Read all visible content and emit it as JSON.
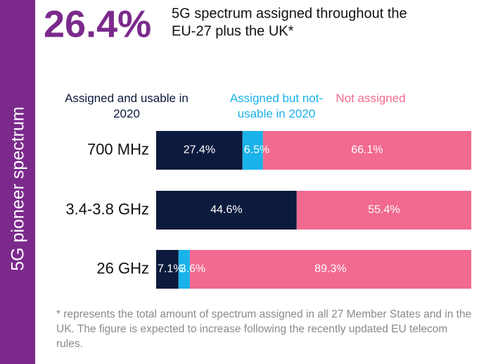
{
  "chart_data": {
    "type": "stacked-bar-horizontal",
    "side_label": "5G pioneer spectrum",
    "headline": "26.4%",
    "subtitle_lines": [
      "5G spectrum assigned throughout the",
      "EU-27 plus the UK*"
    ],
    "categories": [
      "700 MHz",
      "3.4-3.8 GHz",
      "26 GHz"
    ],
    "series": [
      {
        "name": "Assigned and usable in 2020",
        "color": "#0c1a3d",
        "values": [
          27.4,
          44.6,
          7.1
        ],
        "value_labels": [
          "27.4%",
          "44.6%",
          "7.1%"
        ]
      },
      {
        "name": "Assigned but not-usable in 2020",
        "color": "#1ab2ea",
        "values": [
          6.5,
          0,
          3.6
        ],
        "value_labels": [
          "6.5%",
          null,
          "3.6%"
        ]
      },
      {
        "name": "Not assigned",
        "color": "#f26a8f",
        "values": [
          66.1,
          55.4,
          89.3
        ],
        "value_labels": [
          "66.1%",
          "55.4%",
          "89.3%"
        ]
      }
    ],
    "xlim": [
      0,
      100
    ],
    "footnote": "* represents the total amount of spectrum assigned in all 27 Member States and in the UK. The figure is expected to increase following the recently updated EU telecom rules."
  }
}
